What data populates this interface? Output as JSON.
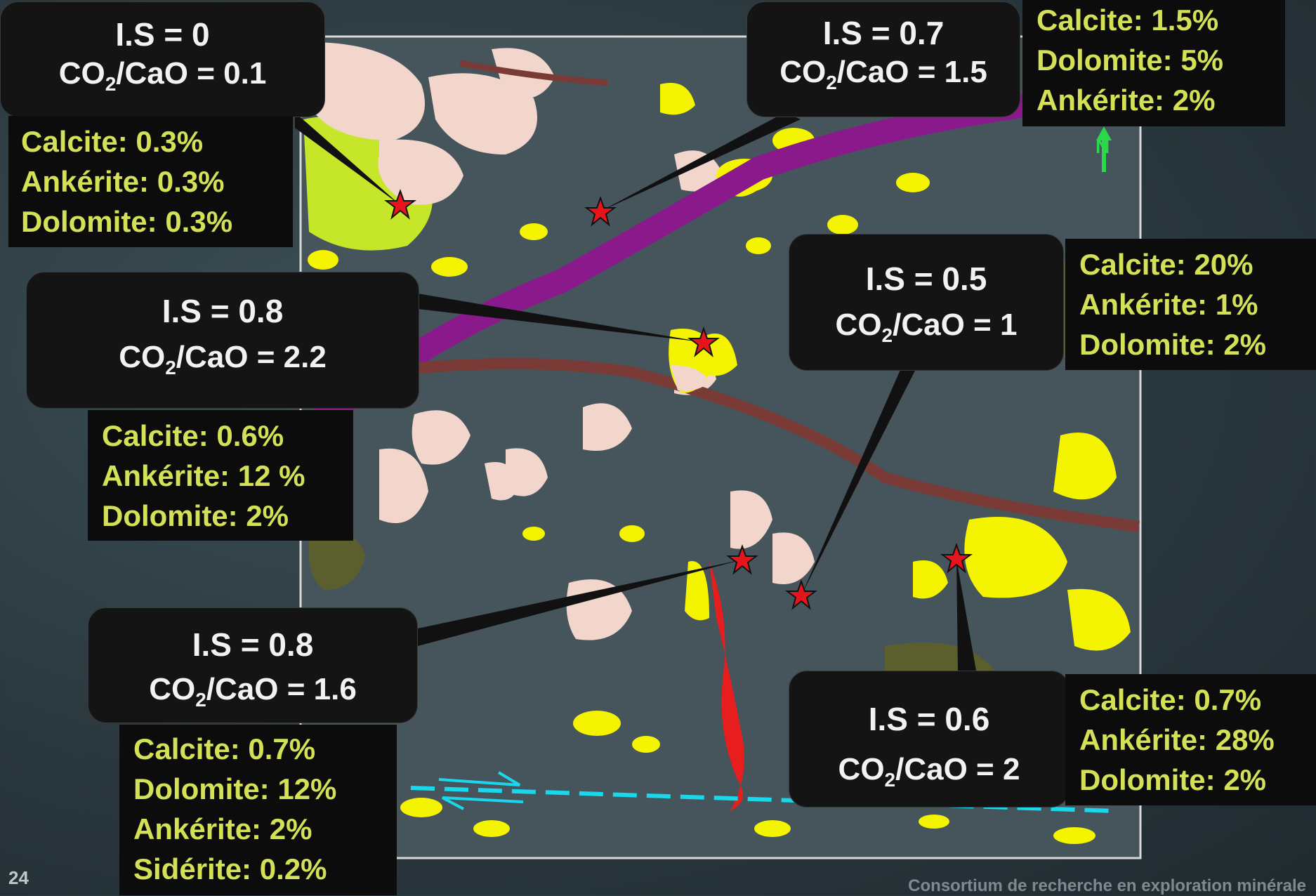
{
  "callouts": {
    "c1": {
      "is": "I.S = 0",
      "co2_prefix": "CO",
      "co2_sub": "2",
      "co2_suffix": "/CaO = 0.1"
    },
    "c2": {
      "is": "I.S = 0.7",
      "co2_prefix": "CO",
      "co2_sub": "2",
      "co2_suffix": "/CaO = 1.5"
    },
    "c3": {
      "is": "I.S = 0.8",
      "co2_prefix": "CO",
      "co2_sub": "2",
      "co2_suffix": "/CaO = 2.2"
    },
    "c4": {
      "is": "I.S = 0.5",
      "co2_prefix": "CO",
      "co2_sub": "2",
      "co2_suffix": "/CaO = 1"
    },
    "c5": {
      "is": "I.S = 0.8",
      "co2_prefix": "CO",
      "co2_sub": "2",
      "co2_suffix": "/CaO = 1.6"
    },
    "c6": {
      "is": "I.S = 0.6",
      "co2_prefix": "CO",
      "co2_sub": "2",
      "co2_suffix": "/CaO = 2"
    }
  },
  "minerals": {
    "m1": [
      "Calcite: 0.3%",
      "Ankérite: 0.3%",
      "Dolomite: 0.3%"
    ],
    "m2": [
      "Calcite: 1.5%",
      "Dolomite: 5%",
      "Ankérite: 2%"
    ],
    "m3": [
      "Calcite: 0.6%",
      "Ankérite: 12 %",
      "Dolomite: 2%"
    ],
    "m4": [
      "Calcite: 20%",
      "Ankérite: 1%",
      "Dolomite: 2%"
    ],
    "m5": [
      "Calcite: 0.7%",
      "Dolomite: 12%",
      "Ankérite: 2%",
      "Sidérite: 0.2%"
    ],
    "m6": [
      "Calcite: 0.7%",
      "Ankérite: 28%",
      "Dolomite: 2%"
    ]
  },
  "north_label": "N",
  "page_number": "24",
  "footer": "Consortium de recherche en exploration minérale",
  "colors": {
    "map_bg": "#46555c",
    "pale_pink": "#f2d6cc",
    "yellow": "#f4f400",
    "lime": "#c6e62a",
    "olive": "#5d6128",
    "purple": "#8a1a8c",
    "brown_band": "#7a3a36",
    "red_dyke": "#e81e1e",
    "fault_cyan": "#19d8ec",
    "star": "#e8141c"
  }
}
